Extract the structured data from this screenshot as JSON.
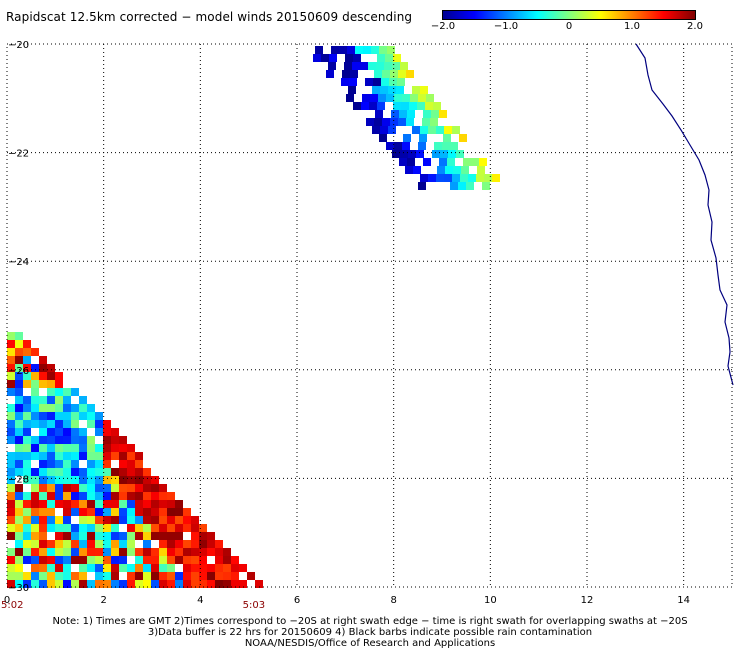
{
  "title": "Rapidscat 12.5km corrected − model winds 20150609 descending",
  "colorbar": {
    "ticks": [
      "−2.0",
      "−1.0",
      "0",
      "1.0",
      "2.0"
    ],
    "stops": [
      "#000090",
      "#0000ff",
      "#0080ff",
      "#00ffff",
      "#80ff80",
      "#ffff00",
      "#ff8000",
      "#ff0000",
      "#800000"
    ]
  },
  "map": {
    "x_ticks": [
      "0",
      "2",
      "4",
      "6",
      "8",
      "10",
      "12",
      "14"
    ],
    "y_ticks": [
      "−20",
      "−22",
      "−24",
      "−26",
      "−28",
      "−30"
    ],
    "x_range": [
      0,
      15
    ],
    "y_range": [
      -20,
      -30
    ],
    "grid": "dotted",
    "time_labels": [
      {
        "text": "5:02",
        "x": 0
      },
      {
        "text": "5:03",
        "x": 5
      }
    ],
    "swath_north_color_range": [
      -2.0,
      0.5
    ],
    "swath_south_color_range": [
      -1.5,
      2.0
    ],
    "coastline_color": "#00007f"
  },
  "notes": [
    "Note: 1) Times are GMT 2)Times correspond to −20S at right swath edge − time is right swath for overlapping swaths at −20S",
    "3)Data buffer is 22 hrs for 20150609 4) Black barbs indicate possible rain contamination",
    "NOAA/NESDIS/Office of Research and Applications"
  ]
}
